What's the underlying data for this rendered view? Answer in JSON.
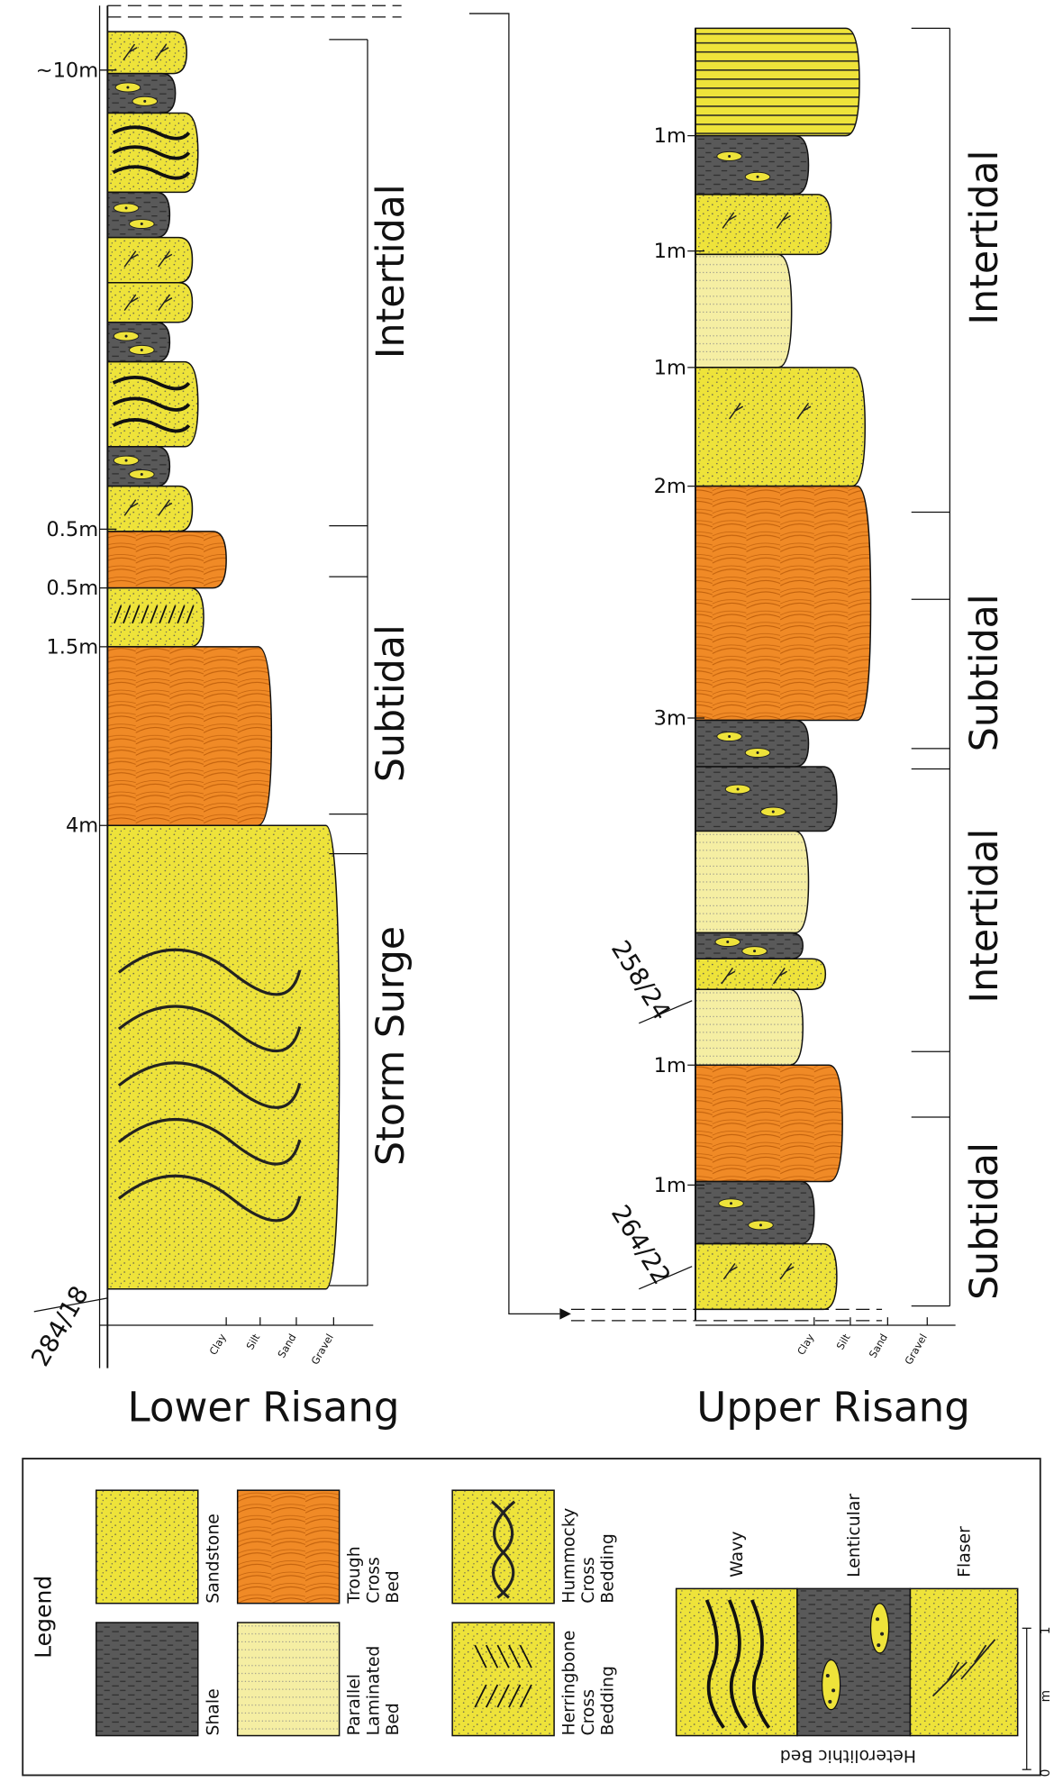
{
  "lower_column": {
    "title": "Lower Risang",
    "thickness_labels": [
      "~10m",
      "0.5m",
      "0.5m",
      "1.5m",
      "4m"
    ],
    "environments": [
      "Intertidal",
      "Subtidal",
      "Storm Surge"
    ],
    "orientation": "284/18",
    "grain_sizes": [
      "Clay",
      "Silt",
      "Sand",
      "Gravel"
    ]
  },
  "upper_column": {
    "title": "Upper Risang",
    "thickness_labels": [
      "1m",
      "1m",
      "1m",
      "2m",
      "3m",
      "1m",
      "1m"
    ],
    "environments": [
      "Intertidal",
      "Subtidal",
      "Intertidal",
      "Subtidal"
    ],
    "orientations": [
      "258/24",
      "264/22"
    ],
    "grain_sizes": [
      "Clay",
      "Silt",
      "Sand",
      "Gravel"
    ]
  },
  "legend": {
    "title": "Legend",
    "items": [
      {
        "lines": [
          "Sandstone"
        ]
      },
      {
        "lines": [
          "Shale"
        ]
      },
      {
        "lines": [
          "Trough",
          "Cross",
          "Bed"
        ]
      },
      {
        "lines": [
          "Parallel",
          "Laminated",
          "Bed"
        ]
      },
      {
        "lines": [
          "Hummocky",
          "Cross",
          "Bedding"
        ]
      },
      {
        "lines": [
          "Herringbone",
          "Cross",
          "Bedding"
        ]
      }
    ],
    "heterolithic": {
      "title": "Heterolithic Bed",
      "items": [
        "Wavy",
        "Lenticular",
        "Flaser"
      ]
    },
    "scale": {
      "unit": "m",
      "ticks": [
        "0",
        "1"
      ]
    }
  }
}
